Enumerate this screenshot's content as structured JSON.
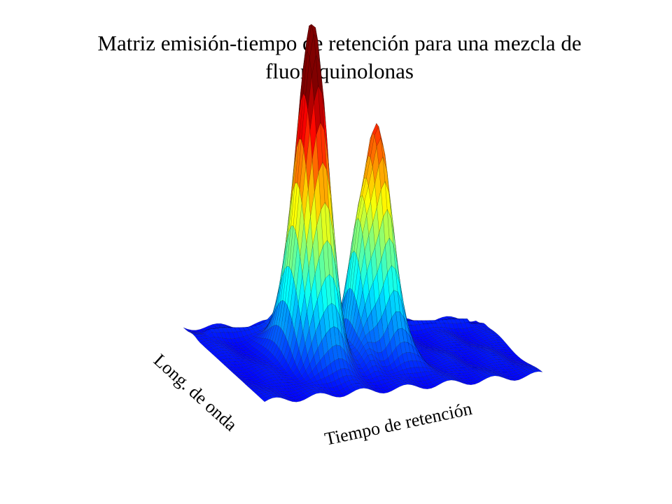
{
  "chart_data": {
    "type": "surface",
    "title": "Matriz emisión-tiempo de retención para una mezcla de fluoroquinolonas",
    "xlabel": "Tiempo de retención",
    "ylabel": "Long. de onda",
    "zlabel": "",
    "grid": false,
    "colormap": "jet",
    "peaks": [
      {
        "retention": 0.33,
        "wavelength": 0.55,
        "height": 1.0,
        "width_t": 0.035,
        "width_w": 0.16
      },
      {
        "retention": 0.27,
        "wavelength": 0.5,
        "height": 0.55,
        "width_t": 0.04,
        "width_w": 0.14
      },
      {
        "retention": 0.56,
        "wavelength": 0.58,
        "height": 0.78,
        "width_t": 0.035,
        "width_w": 0.15
      },
      {
        "retention": 0.49,
        "wavelength": 0.55,
        "height": 0.4,
        "width_t": 0.03,
        "width_w": 0.12
      }
    ]
  }
}
